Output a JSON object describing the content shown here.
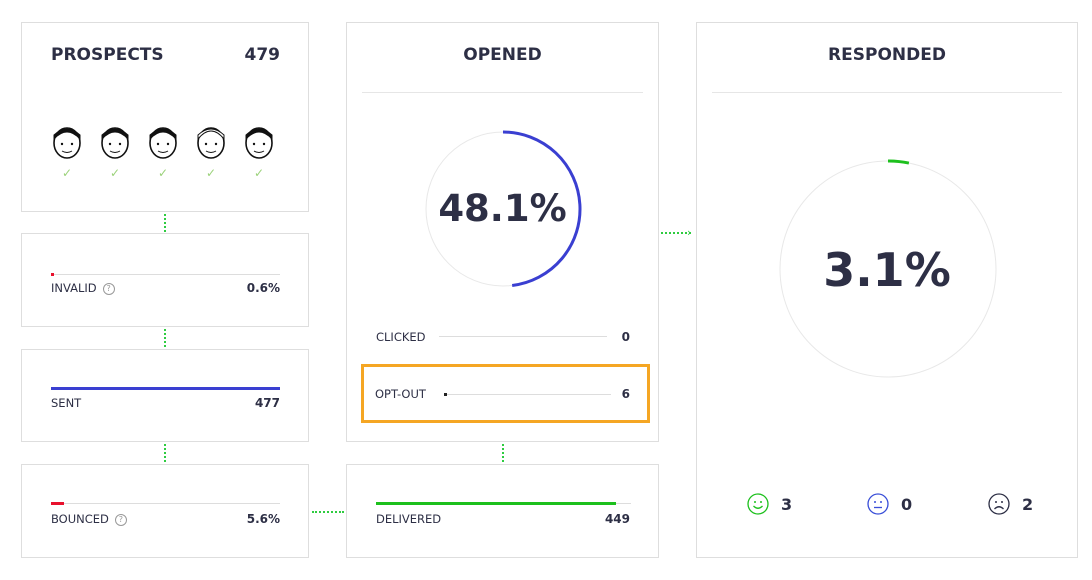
{
  "prospects": {
    "title": "PROSPECTS",
    "count": "479",
    "avatars": [
      "avatar-cap",
      "avatar-girl",
      "avatar-boy",
      "avatar-woman",
      "avatar-glasses"
    ],
    "check": "✓"
  },
  "invalid": {
    "label": "INVALID",
    "value": "0.6%",
    "percent": 0.6,
    "color": "#e8112d",
    "help": "?"
  },
  "sent": {
    "label": "SENT",
    "value": "477",
    "percent": 100,
    "color": "#3a3fd1"
  },
  "bounced": {
    "label": "BOUNCED",
    "value": "5.6%",
    "percent": 5.6,
    "color": "#e8112d",
    "help": "?"
  },
  "opened": {
    "title": "OPENED",
    "percent_text": "48.1%",
    "percent": 48.1,
    "color": "#3a3fd1",
    "clicked": {
      "label": "CLICKED",
      "value": "0"
    },
    "optout": {
      "label": "OPT-OUT",
      "value": "6",
      "highlight": "#f5a623"
    }
  },
  "delivered": {
    "label": "DELIVERED",
    "value": "449",
    "percent": 94,
    "color": "#1dc01d"
  },
  "responded": {
    "title": "RESPONDED",
    "percent_text": "3.1%",
    "percent": 3.1,
    "color": "#1dc01d",
    "positive": "3",
    "neutral": "0",
    "negative": "2"
  }
}
